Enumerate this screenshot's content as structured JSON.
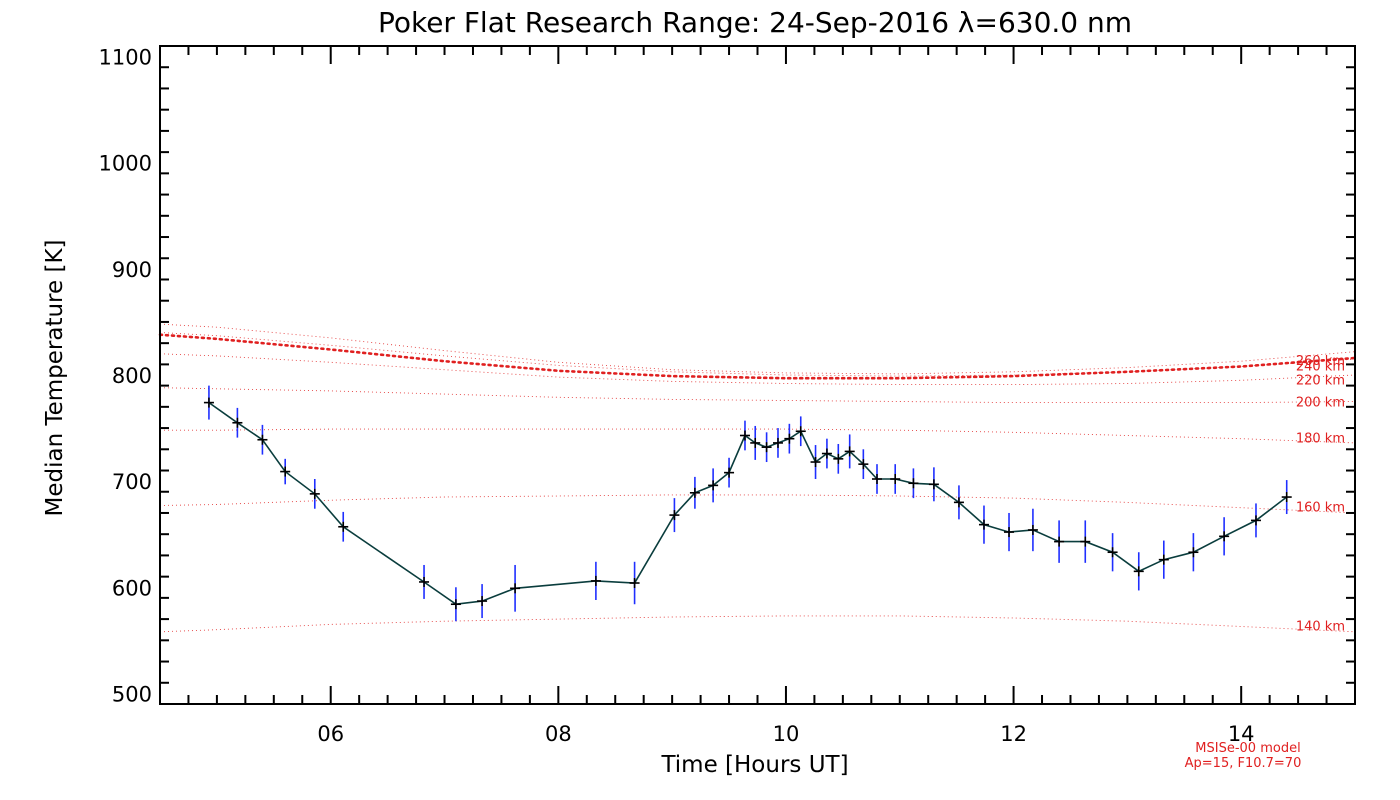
{
  "chart_data": {
    "type": "line",
    "title": "Poker Flat Research Range: 24-Sep-2016 λ=630.0 nm",
    "xlabel": "Time [Hours UT]",
    "ylabel": "Median Temperature [K]",
    "xlim": [
      4.5,
      15.0
    ],
    "ylim": [
      490,
      1110
    ],
    "x_ticks": [
      6,
      8,
      10,
      12,
      14
    ],
    "x_tick_labels": [
      "06",
      "08",
      "10",
      "12",
      "14"
    ],
    "y_ticks": [
      500,
      600,
      700,
      800,
      900,
      1000,
      1100
    ],
    "y_tick_labels": [
      "500",
      "600",
      "700",
      "800",
      "900",
      "1000",
      "1100"
    ],
    "colors": {
      "line": "#0a3d3d",
      "marker": "#000000",
      "error_bar": "#1f2fff",
      "model": "#e02020",
      "axes": "#000000"
    },
    "measurements": {
      "name": "Median Temperature",
      "x": [
        4.93,
        5.18,
        5.4,
        5.6,
        5.86,
        6.11,
        6.82,
        7.1,
        7.33,
        7.62,
        8.33,
        8.67,
        9.02,
        9.2,
        9.36,
        9.5,
        9.64,
        9.73,
        9.83,
        9.93,
        10.03,
        10.13,
        10.26,
        10.36,
        10.46,
        10.56,
        10.68,
        10.8,
        10.96,
        11.12,
        11.3,
        11.52,
        11.74,
        11.96,
        12.17,
        12.4,
        12.63,
        12.87,
        13.1,
        13.32,
        13.58,
        13.85,
        14.13,
        14.4
      ],
      "y": [
        774,
        755,
        739,
        709,
        688,
        657,
        605,
        584,
        587,
        599,
        606,
        604,
        668,
        689,
        696,
        708,
        743,
        736,
        732,
        736,
        740,
        747,
        718,
        726,
        721,
        728,
        716,
        702,
        702,
        698,
        697,
        680,
        659,
        652,
        654,
        643,
        643,
        633,
        615,
        626,
        633,
        648,
        663,
        685
      ],
      "error": [
        16,
        14,
        14,
        12,
        14,
        14,
        16,
        16,
        16,
        22,
        18,
        20,
        16,
        15,
        16,
        14,
        14,
        16,
        14,
        14,
        14,
        14,
        16,
        14,
        14,
        16,
        14,
        14,
        14,
        14,
        16,
        16,
        18,
        18,
        20,
        20,
        20,
        18,
        18,
        18,
        18,
        18,
        16,
        16
      ]
    },
    "model": {
      "name": "MSISe-00 model",
      "params": "Ap=15, F10.7=70",
      "x": [
        4.5,
        5.0,
        6.0,
        7.0,
        8.0,
        9.0,
        10.0,
        11.0,
        12.0,
        13.0,
        14.0,
        15.0
      ],
      "series": [
        {
          "label": "140 km",
          "y": [
            558,
            560,
            565,
            568,
            570,
            572,
            573,
            573,
            571,
            568,
            563,
            558
          ]
        },
        {
          "label": "160 km",
          "y": [
            677,
            678,
            682,
            685,
            686,
            687,
            687,
            686,
            684,
            680,
            675,
            670
          ]
        },
        {
          "label": "180 km",
          "y": [
            748,
            748,
            749,
            749,
            749,
            749,
            749,
            748,
            746,
            743,
            740,
            736
          ]
        },
        {
          "label": "200 km",
          "y": [
            788,
            787,
            785,
            782,
            779,
            777,
            776,
            775,
            774,
            774,
            774,
            775
          ]
        },
        {
          "label": "220 km",
          "y": [
            820,
            818,
            812,
            805,
            798,
            794,
            792,
            791,
            791,
            792,
            795,
            800
          ]
        },
        {
          "label": "240 km",
          "y": [
            840,
            837,
            828,
            818,
            809,
            803,
            800,
            799,
            800,
            803,
            808,
            815
          ]
        },
        {
          "label": "260 km",
          "y": [
            848,
            845,
            835,
            823,
            812,
            805,
            802,
            801,
            803,
            807,
            813,
            822
          ]
        },
        {
          "label": "",
          "highlight": true,
          "y": [
            838,
            834,
            824,
            813,
            804,
            799,
            797,
            797,
            799,
            803,
            808,
            816
          ]
        }
      ]
    },
    "footnote_line1": "MSISe-00 model",
    "footnote_line2": "Ap=15, F10.7=70"
  }
}
